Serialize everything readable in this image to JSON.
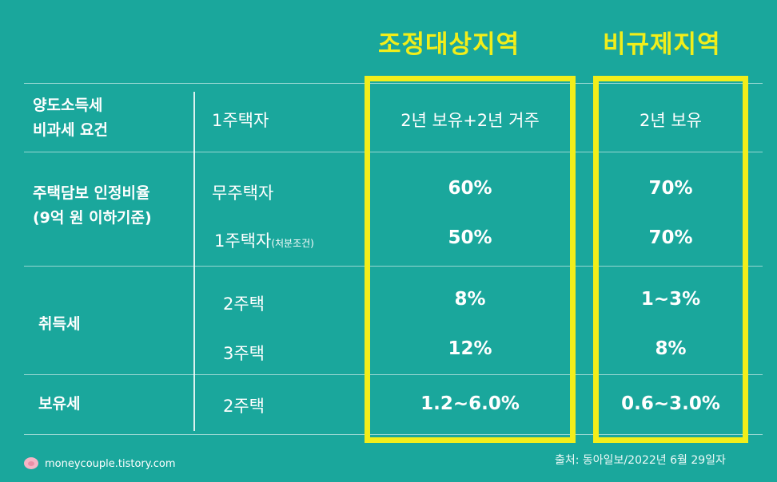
{
  "headers": {
    "regulated": "조정대상지역",
    "non_regulated": "비규제지역"
  },
  "rows": {
    "transfer": {
      "category_line1": "양도소득세",
      "category_line2": "비과세 요건",
      "sub": "1주택자",
      "regulated": "2년 보유+2년 거주",
      "non_regulated": "2년 보유"
    },
    "ltv": {
      "category_line1": "주택담보 인정비율",
      "category_line2": "(9억 원 이하기준)",
      "sub1": "무주택자",
      "sub2": "1주택자",
      "sub2_note": "(처분조건)",
      "regulated1": "60%",
      "non_regulated1": "70%",
      "regulated2": "50%",
      "non_regulated2": "70%"
    },
    "acquisition": {
      "category": "취득세",
      "sub1": "2주택",
      "sub2": "3주택",
      "regulated1": "8%",
      "non_regulated1": "1~3%",
      "regulated2": "12%",
      "non_regulated2": "8%"
    },
    "holding": {
      "category": "보유세",
      "sub": "2주택",
      "regulated": "1.2~6.0%",
      "non_regulated": "0.6~3.0%"
    }
  },
  "footer": {
    "site": "moneycouple.tistory.com",
    "source": "출처: 동아일보/2022년 6월 29일자"
  },
  "colors": {
    "background": "#1aa79c",
    "highlight": "#f2ee1a",
    "text": "#ffffff"
  },
  "icons": {
    "site": "pig-icon"
  }
}
